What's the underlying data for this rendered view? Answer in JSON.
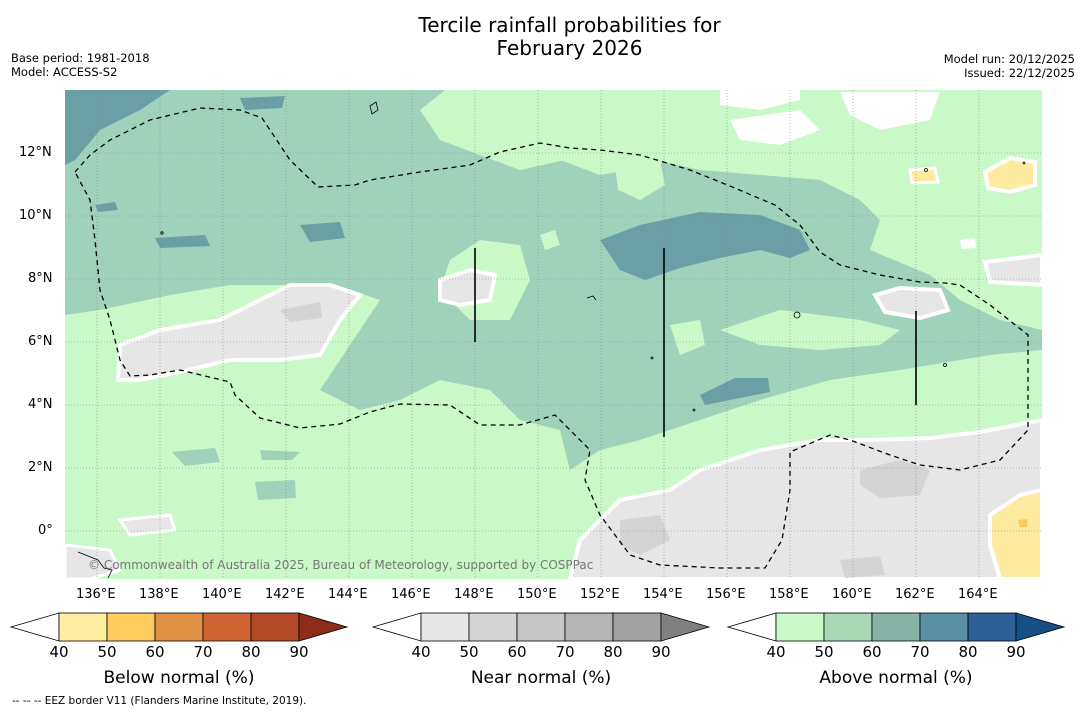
{
  "title": {
    "line1": "Tercile rainfall probabilities for",
    "line2": "February 2026"
  },
  "meta": {
    "base_period": "Base period: 1981-2018",
    "model": "Model: ACCESS-S2",
    "model_run": "Model run: 20/12/2025",
    "issued": "Issued: 22/12/2025"
  },
  "map": {
    "lat_labels": [
      "12°N",
      "10°N",
      "8°N",
      "6°N",
      "4°N",
      "2°N",
      "0°"
    ],
    "lon_labels": [
      "136°E",
      "138°E",
      "140°E",
      "142°E",
      "144°E",
      "146°E",
      "148°E",
      "150°E",
      "152°E",
      "154°E",
      "156°E",
      "158°E",
      "160°E",
      "162°E",
      "164°E"
    ],
    "copyright": "© Commonwealth of Australia 2025, Bureau of Meteorology, supported by COSPPac",
    "colors": {
      "above_near": "#9ed2bb",
      "above_dark": "#6a9fa6",
      "above_light": "#c9f9c7",
      "near_light": "#e6e6e6",
      "near_mid": "#d4d4d4",
      "below_light": "#ffeb9f"
    }
  },
  "colorbars": [
    {
      "title": "Below normal (%)",
      "ticks": [
        "40",
        "50",
        "60",
        "70",
        "80",
        "90"
      ],
      "colors": [
        "#ffeda0",
        "#fecc5c",
        "#e09146",
        "#cf6532",
        "#b24a27",
        "#8b2d19"
      ]
    },
    {
      "title": "Near normal (%)",
      "ticks": [
        "40",
        "50",
        "60",
        "70",
        "80",
        "90"
      ],
      "colors": [
        "#e6e6e6",
        "#d4d4d4",
        "#c6c6c6",
        "#b4b4b4",
        "#a2a2a2",
        "#808080"
      ]
    },
    {
      "title": "Above normal (%)",
      "ticks": [
        "40",
        "50",
        "60",
        "70",
        "80",
        "90"
      ],
      "colors": [
        "#c9f9c7",
        "#a8d9b4",
        "#87b3a7",
        "#5b8fa4",
        "#2e5f95",
        "#164f86"
      ]
    }
  ],
  "footnote": "--  --  -- EEZ border V11 (Flanders Marine Institute, 2019)."
}
